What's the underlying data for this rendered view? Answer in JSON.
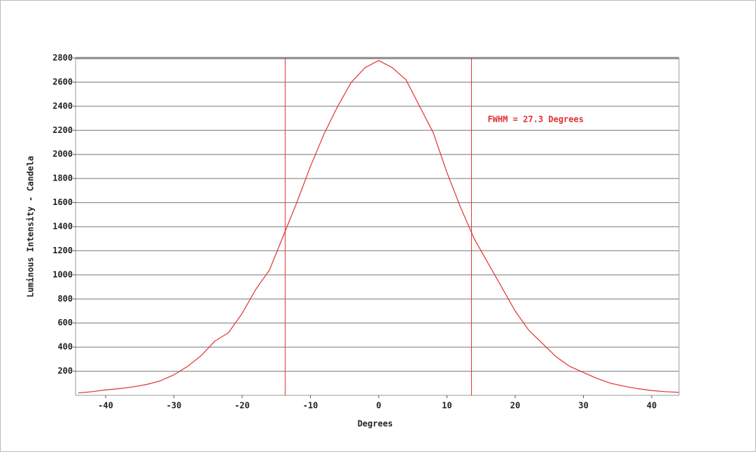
{
  "chart_data": {
    "type": "line",
    "x_label": "Degrees",
    "y_label": "Luminous Intensity - Candela",
    "annotation": "FWHM = 27.3 Degrees",
    "x": [
      -44,
      -42,
      -40,
      -38,
      -36,
      -34,
      -32,
      -30,
      -28,
      -26,
      -24,
      -22,
      -20,
      -18,
      -16,
      -14,
      -12,
      -10,
      -8,
      -6,
      -4,
      -2,
      0,
      2,
      4,
      6,
      8,
      10,
      12,
      14,
      16,
      18,
      20,
      22,
      24,
      26,
      28,
      30,
      32,
      34,
      36,
      38,
      40,
      42,
      44
    ],
    "series": [
      {
        "color": "#e03030",
        "values": [
          20,
          30,
          45,
          55,
          70,
          90,
          120,
          170,
          240,
          330,
          450,
          520,
          680,
          880,
          1040,
          1320,
          1600,
          1900,
          2170,
          2400,
          2600,
          2720,
          2780,
          2720,
          2620,
          2400,
          2180,
          1850,
          1560,
          1300,
          1100,
          900,
          700,
          540,
          430,
          320,
          240,
          190,
          140,
          100,
          75,
          55,
          40,
          30,
          25
        ]
      }
    ],
    "vlines": [
      -13.7,
      13.6
    ],
    "vline_color": "#e03030",
    "xlim": [
      -44.4,
      44
    ],
    "ylim": [
      0,
      2800
    ],
    "xticks": [
      -40,
      -30,
      -20,
      -10,
      0,
      10,
      20,
      30,
      40
    ],
    "yticks": [
      200,
      400,
      600,
      800,
      1000,
      1200,
      1400,
      1600,
      1800,
      2000,
      2200,
      2400,
      2600,
      2800
    ],
    "grid": true
  }
}
